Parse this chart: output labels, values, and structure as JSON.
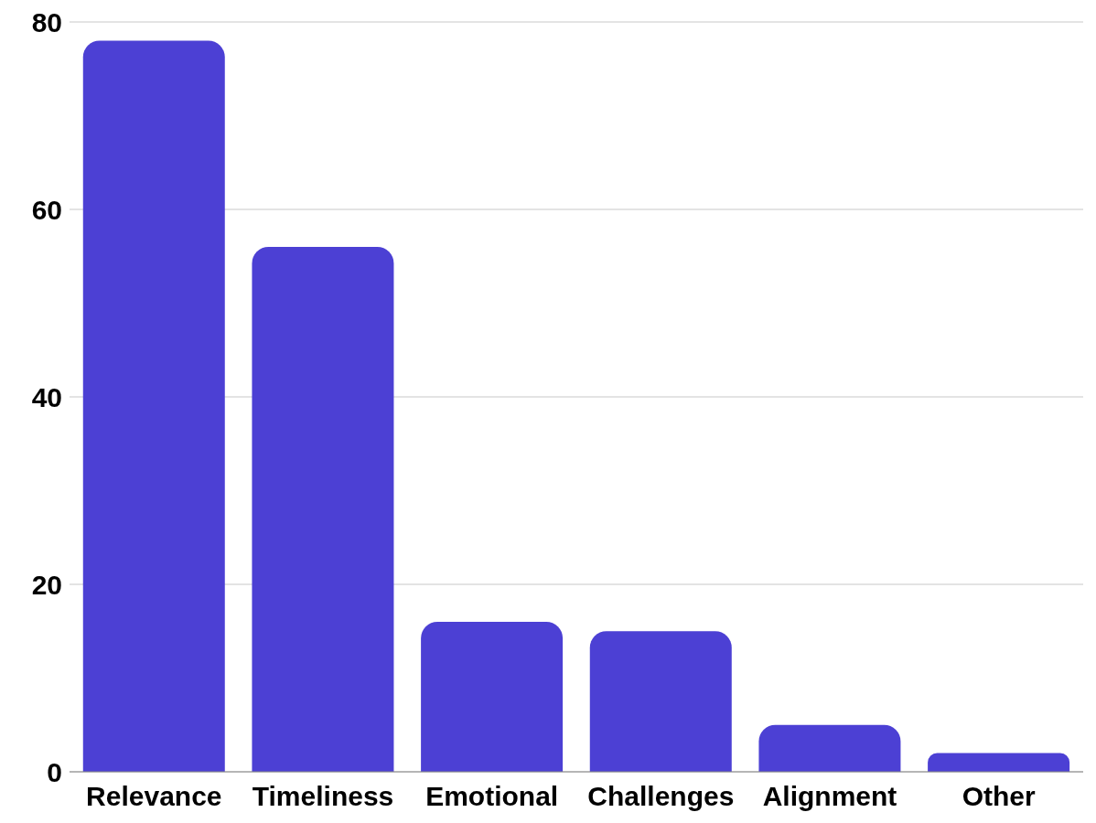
{
  "chart_data": {
    "type": "bar",
    "categories": [
      "Relevance",
      "Timeliness",
      "Emotional",
      "Challenges",
      "Alignment",
      "Other"
    ],
    "values": [
      78,
      56,
      16,
      15,
      5,
      2
    ],
    "color": "#4c40d4",
    "ylim": [
      0,
      80
    ],
    "yticks": [
      0,
      20,
      40,
      60,
      80
    ],
    "grid": "y"
  }
}
